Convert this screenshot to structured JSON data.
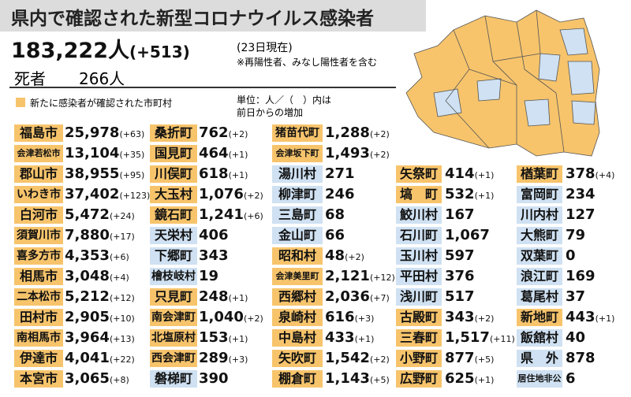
{
  "header": {
    "title": "県内で確認された新型コロナウイルス感染者",
    "total": "183,222人",
    "total_increase": "(+513)",
    "as_of": "(23日現在)",
    "note": "※再陽性者、みなし陽性者を含む",
    "deaths_label": "死者",
    "deaths": "266人"
  },
  "legend": {
    "text": "新たに感染者が確認された市町村",
    "unit_line1": "単位：人／（　）内は",
    "unit_line2": "前日からの増加"
  },
  "colors": {
    "new": "#f7c46c",
    "other": "#cfe1f2"
  },
  "table": {
    "columns": [
      [
        {
          "name": "福島市",
          "count": "25,978",
          "increase": "(+63)",
          "new": true
        },
        {
          "name": "会津若松市",
          "count": "13,104",
          "increase": "(+35)",
          "new": true
        },
        {
          "name": "郡山市",
          "count": "38,955",
          "increase": "(+95)",
          "new": true
        },
        {
          "name": "いわき市",
          "count": "37,402",
          "increase": "(+123)",
          "new": true
        },
        {
          "name": "白河市",
          "count": "5,472",
          "increase": "(+24)",
          "new": true
        },
        {
          "name": "須賀川市",
          "count": "7,880",
          "increase": "(+17)",
          "new": true
        },
        {
          "name": "喜多方市",
          "count": "4,353",
          "increase": "(+6)",
          "new": true
        },
        {
          "name": "相馬市",
          "count": "3,048",
          "increase": "(+4)",
          "new": true
        },
        {
          "name": "二本松市",
          "count": "5,212",
          "increase": "(+12)",
          "new": true
        },
        {
          "name": "田村市",
          "count": "2,905",
          "increase": "(+10)",
          "new": true
        },
        {
          "name": "南相馬市",
          "count": "3,964",
          "increase": "(+13)",
          "new": true
        },
        {
          "name": "伊達市",
          "count": "4,041",
          "increase": "(+22)",
          "new": true
        },
        {
          "name": "本宮市",
          "count": "3,065",
          "increase": "(+8)",
          "new": true
        }
      ],
      [
        {
          "name": "桑折町",
          "count": "762",
          "increase": "(+2)",
          "new": true
        },
        {
          "name": "国見町",
          "count": "464",
          "increase": "(+1)",
          "new": true
        },
        {
          "name": "川俣町",
          "count": "618",
          "increase": "(+1)",
          "new": true
        },
        {
          "name": "大玉村",
          "count": "1,076",
          "increase": "(+2)",
          "new": true
        },
        {
          "name": "鏡石町",
          "count": "1,241",
          "increase": "(+6)",
          "new": true
        },
        {
          "name": "天栄村",
          "count": "406",
          "increase": null,
          "new": false
        },
        {
          "name": "下郷町",
          "count": "343",
          "increase": null,
          "new": false
        },
        {
          "name": "檜枝岐村",
          "count": "19",
          "increase": null,
          "new": false
        },
        {
          "name": "只見町",
          "count": "248",
          "increase": "(+1)",
          "new": true
        },
        {
          "name": "南会津町",
          "count": "1,040",
          "increase": "(+2)",
          "new": true
        },
        {
          "name": "北塩原村",
          "count": "153",
          "increase": "(+1)",
          "new": true
        },
        {
          "name": "西会津町",
          "count": "289",
          "increase": "(+3)",
          "new": true
        },
        {
          "name": "磐梯町",
          "count": "390",
          "increase": null,
          "new": false
        }
      ],
      [
        {
          "name": "猪苗代町",
          "count": "1,288",
          "increase": "(+2)",
          "new": true
        },
        {
          "name": "会津坂下町",
          "count": "1,493",
          "increase": "(+2)",
          "new": true
        },
        {
          "name": "湯川村",
          "count": "271",
          "increase": null,
          "new": false
        },
        {
          "name": "柳津町",
          "count": "246",
          "increase": null,
          "new": false
        },
        {
          "name": "三島町",
          "count": "68",
          "increase": null,
          "new": false
        },
        {
          "name": "金山町",
          "count": "66",
          "increase": null,
          "new": false
        },
        {
          "name": "昭和村",
          "count": "48",
          "increase": "(+2)",
          "new": true
        },
        {
          "name": "会津美里町",
          "count": "2,121",
          "increase": "(+12)",
          "new": true
        },
        {
          "name": "西郷村",
          "count": "2,036",
          "increase": "(+7)",
          "new": true
        },
        {
          "name": "泉崎村",
          "count": "616",
          "increase": "(+3)",
          "new": true
        },
        {
          "name": "中島村",
          "count": "433",
          "increase": "(+1)",
          "new": true
        },
        {
          "name": "矢吹町",
          "count": "1,542",
          "increase": "(+2)",
          "new": true
        },
        {
          "name": "棚倉町",
          "count": "1,143",
          "increase": "(+5)",
          "new": true
        }
      ],
      [
        {
          "name": "矢祭町",
          "count": "414",
          "increase": "(+1)",
          "new": true
        },
        {
          "name": "塙　町",
          "count": "532",
          "increase": "(+1)",
          "new": true
        },
        {
          "name": "鮫川村",
          "count": "167",
          "increase": null,
          "new": false
        },
        {
          "name": "石川町",
          "count": "1,067",
          "increase": null,
          "new": false
        },
        {
          "name": "玉川村",
          "count": "597",
          "increase": null,
          "new": false
        },
        {
          "name": "平田村",
          "count": "376",
          "increase": null,
          "new": false
        },
        {
          "name": "浅川町",
          "count": "517",
          "increase": null,
          "new": false
        },
        {
          "name": "古殿町",
          "count": "343",
          "increase": "(+2)",
          "new": true
        },
        {
          "name": "三春町",
          "count": "1,517",
          "increase": "(+11)",
          "new": true
        },
        {
          "name": "小野町",
          "count": "877",
          "increase": "(+5)",
          "new": true
        },
        {
          "name": "広野町",
          "count": "625",
          "increase": "(+1)",
          "new": true
        }
      ],
      [
        {
          "name": "楢葉町",
          "count": "378",
          "increase": "(+4)",
          "new": true
        },
        {
          "name": "富岡町",
          "count": "234",
          "increase": null,
          "new": false
        },
        {
          "name": "川内村",
          "count": "127",
          "increase": null,
          "new": false
        },
        {
          "name": "大熊町",
          "count": "79",
          "increase": null,
          "new": false
        },
        {
          "name": "双葉町",
          "count": "0",
          "increase": null,
          "new": false
        },
        {
          "name": "浪江町",
          "count": "169",
          "increase": null,
          "new": false
        },
        {
          "name": "葛尾村",
          "count": "37",
          "increase": null,
          "new": false
        },
        {
          "name": "新地町",
          "count": "443",
          "increase": "(+1)",
          "new": true
        },
        {
          "name": "飯舘村",
          "count": "40",
          "increase": null,
          "new": false
        },
        {
          "name": "県　外",
          "count": "878",
          "increase": null,
          "new": false
        },
        {
          "name": "居住地非公表",
          "count": "6",
          "increase": null,
          "new": false
        }
      ]
    ]
  }
}
